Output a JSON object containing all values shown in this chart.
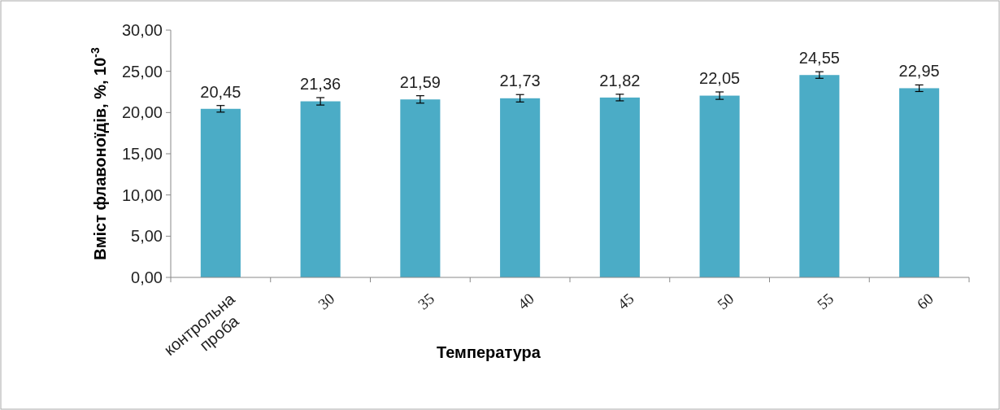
{
  "chart_data": {
    "type": "bar",
    "xlabel": "Температура",
    "ylabel": "Вміст флавоноїдів, %, 10$^{-3}$",
    "categories": [
      "контрольна проба",
      "30",
      "35",
      "40",
      "45",
      "50",
      "55",
      "60"
    ],
    "values": [
      20.45,
      21.36,
      21.59,
      21.73,
      21.82,
      22.05,
      24.55,
      22.95
    ],
    "errors": [
      0.4,
      0.45,
      0.45,
      0.45,
      0.4,
      0.45,
      0.4,
      0.4
    ],
    "color": "#4bacc6",
    "ylim": [
      0,
      30
    ],
    "yticks": [
      {
        "value": 0,
        "label": "0,00"
      },
      {
        "value": 5,
        "label": "5,00"
      },
      {
        "value": 10,
        "label": "10,00"
      },
      {
        "value": 15,
        "label": "15,00"
      },
      {
        "value": 20,
        "label": "20,00"
      },
      {
        "value": 25,
        "label": "25,00"
      },
      {
        "value": 30,
        "label": "30,00"
      }
    ],
    "value_labels": [
      "20,45",
      "21,36",
      "21,59",
      "21,73",
      "21,82",
      "22,05",
      "24,55",
      "22,95"
    ]
  }
}
